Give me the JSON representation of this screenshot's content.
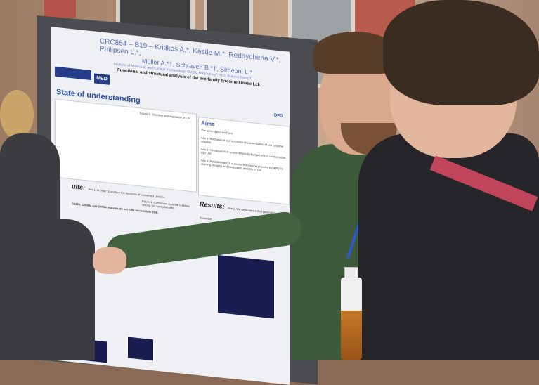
{
  "poster": {
    "title": "CRC854 – B19 – Kritikos A.*, Kästle M.*, Reddycherla V.*, Philipsen L.*,",
    "authors": "Müller A.*†, Schraven B.*†, Simeoni L.*",
    "institute": "Institute of Molecular and Clinical Immunology, OVGU Magdeburg*; HZI, Braunschweig†",
    "subtitle": "Functional and structural analysis of the Src family tyrosine kinase Lck",
    "logo_med": "MED",
    "logo_dfg": "DFG",
    "section_state": "State of understanding",
    "figure1": "Figure 1: Structure and regulation of Lck.",
    "section_aims": "Aims",
    "aims_intro": "The aims of this work are:",
    "aims": [
      "Aim 1: Biochemical and functional characterization of Lck cysteine mutants",
      "Aim 2: Visualization of spatio-temporal changes of Lck conformation by FLIM",
      "Aim 3: Establishment of a standard operating procedure (SOP) for staining, imaging and localization analysis of Lck"
    ],
    "results_left": "ults:",
    "results_left_text": "Aim 1. In order to analyze the functions of conserved cysteine",
    "results_right": "Results:",
    "results_right_text": "Aim 2. We generated a 2nd generation biosensor",
    "figure2": "Figure 2. Conserved cysteine residues among Src-family kinases.",
    "mutants": "C224A, C465A, and C476A mutants do not fully reconstitute ERK"
  }
}
